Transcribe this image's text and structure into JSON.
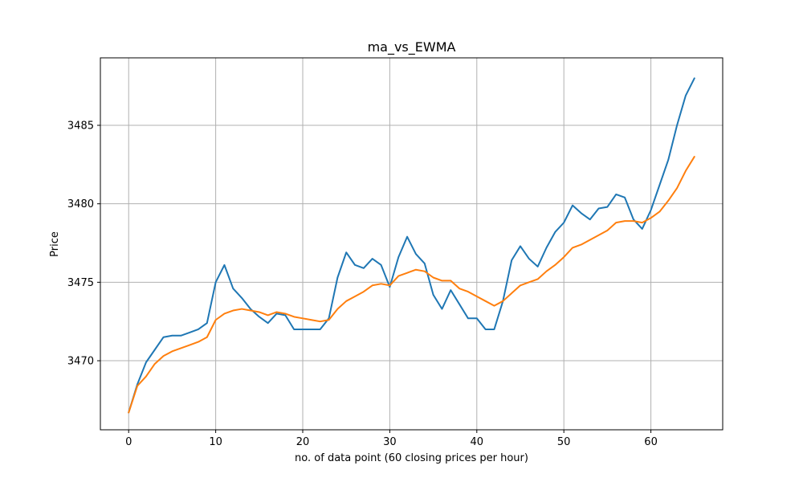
{
  "chart_data": {
    "type": "line",
    "title": "ma_vs_EWMA",
    "xlabel": "no. of data point (60 closing prices per hour)",
    "ylabel": "Price",
    "xlim": [
      -3.25,
      68.25
    ],
    "ylim": [
      3465.6,
      3489.3
    ],
    "x_ticks": [
      0,
      10,
      20,
      30,
      40,
      50,
      60
    ],
    "y_ticks": [
      3470,
      3475,
      3480,
      3485
    ],
    "grid": true,
    "colors": {
      "series_1": "#1f77b4",
      "series_2": "#ff7f0e",
      "grid": "#b0b0b0",
      "axes": "#000000"
    },
    "series": [
      {
        "values": [
          3466.7,
          3468.5,
          3469.9,
          3470.7,
          3471.5,
          3471.6,
          3471.6,
          3471.8,
          3472.0,
          3472.4,
          3475.0,
          3476.1,
          3474.6,
          3474.0,
          3473.3,
          3472.8,
          3472.4,
          3473.0,
          3472.9,
          3472.0,
          3472.0,
          3472.0,
          3472.0,
          3472.7,
          3475.3,
          3476.9,
          3476.1,
          3475.9,
          3476.5,
          3476.1,
          3474.7,
          3476.6,
          3477.9,
          3476.8,
          3476.2,
          3474.2,
          3473.3,
          3474.5,
          3473.6,
          3472.7,
          3472.7,
          3472.0,
          3472.0,
          3473.8,
          3476.4,
          3477.3,
          3476.5,
          3476.0,
          3477.2,
          3478.2,
          3478.8,
          3479.9,
          3479.4,
          3479.0,
          3479.7,
          3479.8,
          3480.6,
          3480.4,
          3479.0,
          3478.4,
          3479.6,
          3481.2,
          3482.8,
          3485.0,
          3486.9,
          3488.0
        ]
      },
      {
        "values": [
          3466.7,
          3468.4,
          3469.0,
          3469.8,
          3470.3,
          3470.6,
          3470.8,
          3471.0,
          3471.2,
          3471.5,
          3472.6,
          3473.0,
          3473.2,
          3473.3,
          3473.2,
          3473.1,
          3472.9,
          3473.1,
          3473.0,
          3472.8,
          3472.7,
          3472.6,
          3472.5,
          3472.6,
          3473.3,
          3473.8,
          3474.1,
          3474.4,
          3474.8,
          3474.9,
          3474.8,
          3475.4,
          3475.6,
          3475.8,
          3475.7,
          3475.3,
          3475.1,
          3475.1,
          3474.6,
          3474.4,
          3474.1,
          3473.8,
          3473.5,
          3473.8,
          3474.3,
          3474.8,
          3475.0,
          3475.2,
          3475.7,
          3476.1,
          3476.6,
          3477.2,
          3477.4,
          3477.7,
          3478.0,
          3478.3,
          3478.8,
          3478.9,
          3478.9,
          3478.8,
          3479.1,
          3479.5,
          3480.2,
          3481.0,
          3482.1,
          3483.0
        ]
      }
    ]
  }
}
